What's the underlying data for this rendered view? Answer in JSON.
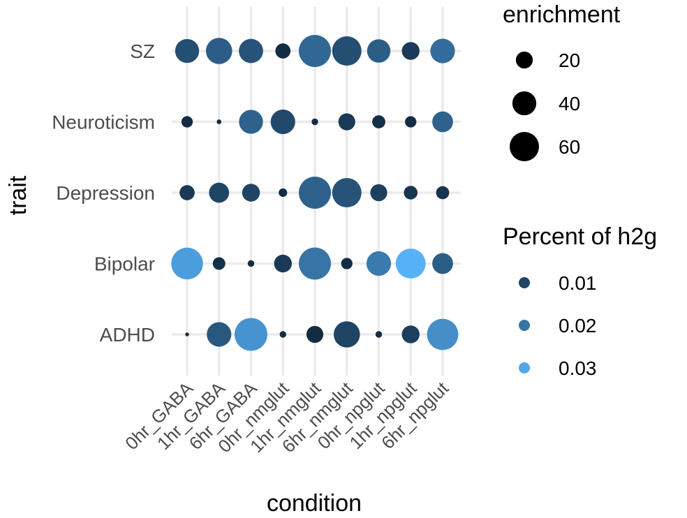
{
  "chart_data": {
    "type": "scatter",
    "subtype": "dot-plot",
    "xlabel": "condition",
    "ylabel": "trait",
    "categories_x": [
      "0hr_GABA",
      "1hr_GABA",
      "6hr_GABA",
      "0hr_nmglut",
      "1hr_nmglut",
      "6hr_nmglut",
      "0hr_npglut",
      "1hr_npglut",
      "6hr_npglut"
    ],
    "categories_y": [
      "SZ",
      "Neuroticism",
      "Depression",
      "Bipolar",
      "ADHD"
    ],
    "grid": true,
    "points": [
      {
        "x": "0hr_GABA",
        "y": "SZ",
        "enrichment": 40,
        "percent_h2g": 0.012
      },
      {
        "x": "1hr_GABA",
        "y": "SZ",
        "enrichment": 48,
        "percent_h2g": 0.015
      },
      {
        "x": "6hr_GABA",
        "y": "SZ",
        "enrichment": 41,
        "percent_h2g": 0.013
      },
      {
        "x": "0hr_nmglut",
        "y": "SZ",
        "enrichment": 16,
        "percent_h2g": 0.005
      },
      {
        "x": "1hr_nmglut",
        "y": "SZ",
        "enrichment": 72,
        "percent_h2g": 0.017
      },
      {
        "x": "6hr_nmglut",
        "y": "SZ",
        "enrichment": 60,
        "percent_h2g": 0.012
      },
      {
        "x": "0hr_npglut",
        "y": "SZ",
        "enrichment": 38,
        "percent_h2g": 0.015
      },
      {
        "x": "1hr_npglut",
        "y": "SZ",
        "enrichment": 22,
        "percent_h2g": 0.008
      },
      {
        "x": "6hr_npglut",
        "y": "SZ",
        "enrichment": 42,
        "percent_h2g": 0.018
      },
      {
        "x": "0hr_GABA",
        "y": "Neuroticism",
        "enrichment": 9,
        "percent_h2g": 0.005
      },
      {
        "x": "1hr_GABA",
        "y": "Neuroticism",
        "enrichment": 1.5,
        "percent_h2g": 0.005
      },
      {
        "x": "6hr_GABA",
        "y": "Neuroticism",
        "enrichment": 40,
        "percent_h2g": 0.016
      },
      {
        "x": "0hr_nmglut",
        "y": "Neuroticism",
        "enrichment": 42,
        "percent_h2g": 0.011
      },
      {
        "x": "1hr_nmglut",
        "y": "Neuroticism",
        "enrichment": 3,
        "percent_h2g": 0.005
      },
      {
        "x": "6hr_nmglut",
        "y": "Neuroticism",
        "enrichment": 20,
        "percent_h2g": 0.008
      },
      {
        "x": "0hr_npglut",
        "y": "Neuroticism",
        "enrichment": 12,
        "percent_h2g": 0.006
      },
      {
        "x": "1hr_npglut",
        "y": "Neuroticism",
        "enrichment": 9,
        "percent_h2g": 0.005
      },
      {
        "x": "6hr_npglut",
        "y": "Neuroticism",
        "enrichment": 30,
        "percent_h2g": 0.016
      },
      {
        "x": "0hr_GABA",
        "y": "Depression",
        "enrichment": 16,
        "percent_h2g": 0.008
      },
      {
        "x": "1hr_GABA",
        "y": "Depression",
        "enrichment": 28,
        "percent_h2g": 0.01
      },
      {
        "x": "6hr_GABA",
        "y": "Depression",
        "enrichment": 22,
        "percent_h2g": 0.01
      },
      {
        "x": "0hr_nmglut",
        "y": "Depression",
        "enrichment": 5,
        "percent_h2g": 0.005
      },
      {
        "x": "1hr_nmglut",
        "y": "Depression",
        "enrichment": 72,
        "percent_h2g": 0.016
      },
      {
        "x": "6hr_nmglut",
        "y": "Depression",
        "enrichment": 60,
        "percent_h2g": 0.013
      },
      {
        "x": "0hr_npglut",
        "y": "Depression",
        "enrichment": 20,
        "percent_h2g": 0.009
      },
      {
        "x": "1hr_npglut",
        "y": "Depression",
        "enrichment": 13,
        "percent_h2g": 0.007
      },
      {
        "x": "6hr_npglut",
        "y": "Depression",
        "enrichment": 12,
        "percent_h2g": 0.007
      },
      {
        "x": "0hr_GABA",
        "y": "Bipolar",
        "enrichment": 70,
        "percent_h2g": 0.028
      },
      {
        "x": "1hr_GABA",
        "y": "Bipolar",
        "enrichment": 11,
        "percent_h2g": 0.006
      },
      {
        "x": "6hr_GABA",
        "y": "Bipolar",
        "enrichment": 3,
        "percent_h2g": 0.005
      },
      {
        "x": "0hr_nmglut",
        "y": "Bipolar",
        "enrichment": 22,
        "percent_h2g": 0.008
      },
      {
        "x": "1hr_nmglut",
        "y": "Bipolar",
        "enrichment": 72,
        "percent_h2g": 0.02
      },
      {
        "x": "6hr_nmglut",
        "y": "Bipolar",
        "enrichment": 9,
        "percent_h2g": 0.005
      },
      {
        "x": "0hr_npglut",
        "y": "Bipolar",
        "enrichment": 42,
        "percent_h2g": 0.021
      },
      {
        "x": "1hr_npglut",
        "y": "Bipolar",
        "enrichment": 62,
        "percent_h2g": 0.032
      },
      {
        "x": "6hr_npglut",
        "y": "Bipolar",
        "enrichment": 30,
        "percent_h2g": 0.015
      },
      {
        "x": "0hr_GABA",
        "y": "ADHD",
        "enrichment": 1,
        "percent_h2g": 0.005
      },
      {
        "x": "1hr_GABA",
        "y": "ADHD",
        "enrichment": 42,
        "percent_h2g": 0.014
      },
      {
        "x": "6hr_GABA",
        "y": "ADHD",
        "enrichment": 75,
        "percent_h2g": 0.026
      },
      {
        "x": "0hr_nmglut",
        "y": "ADHD",
        "enrichment": 3,
        "percent_h2g": 0.005
      },
      {
        "x": "1hr_nmglut",
        "y": "ADHD",
        "enrichment": 20,
        "percent_h2g": 0.005
      },
      {
        "x": "6hr_nmglut",
        "y": "ADHD",
        "enrichment": 48,
        "percent_h2g": 0.01
      },
      {
        "x": "0hr_npglut",
        "y": "ADHD",
        "enrichment": 3,
        "percent_h2g": 0.005
      },
      {
        "x": "1hr_npglut",
        "y": "ADHD",
        "enrichment": 22,
        "percent_h2g": 0.009
      },
      {
        "x": "6hr_npglut",
        "y": "ADHD",
        "enrichment": 68,
        "percent_h2g": 0.025
      }
    ],
    "size_legend": {
      "title": "enrichment",
      "breaks": [
        20,
        40,
        60
      ],
      "labels": [
        "20",
        "40",
        "60"
      ],
      "range": [
        0,
        75
      ]
    },
    "color_legend": {
      "title": "Percent of h2g",
      "breaks": [
        0.01,
        0.02,
        0.03
      ],
      "labels": [
        "0.01",
        "0.02",
        "0.03"
      ],
      "range": [
        0.005,
        0.032
      ],
      "low_color": "#132B43",
      "high_color": "#56B1F7"
    },
    "colors": {
      "grid": "#ebebeb",
      "background": "#ffffff"
    }
  }
}
